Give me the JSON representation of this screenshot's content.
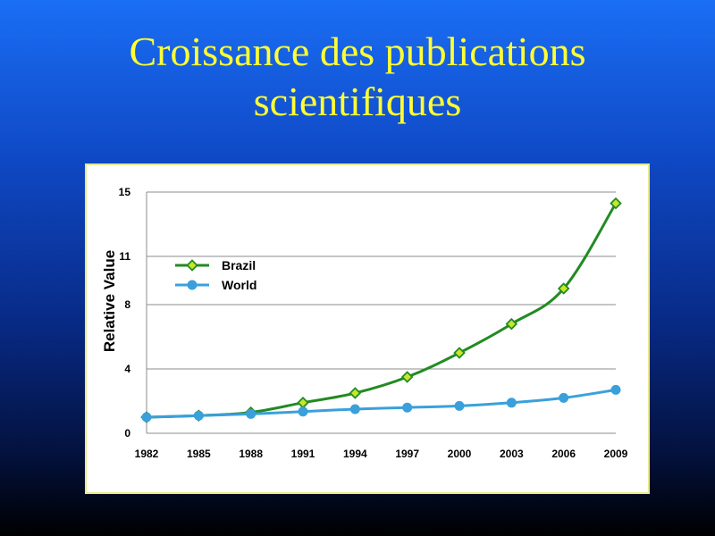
{
  "slide": {
    "title_line1": "Croissance des publications",
    "title_line2": "scientifiques"
  },
  "chart_data": {
    "type": "line",
    "title": "Croissance des publications scientifiques",
    "xlabel": "",
    "ylabel": "Relative Value",
    "x": [
      "1982",
      "1985",
      "1988",
      "1991",
      "1994",
      "1997",
      "2000",
      "2003",
      "2006",
      "2009"
    ],
    "yticks": [
      0,
      4,
      8,
      11,
      15
    ],
    "ylim": [
      0,
      15
    ],
    "grid": true,
    "legend_position": "upper-left",
    "series": [
      {
        "name": "Brazil",
        "values": [
          1.0,
          1.1,
          1.3,
          1.9,
          2.5,
          3.5,
          5.0,
          6.8,
          9.0,
          14.3
        ],
        "color": "#228b22",
        "marker": "diamond",
        "marker_fill": "#c8e62c"
      },
      {
        "name": "World",
        "values": [
          1.0,
          1.1,
          1.2,
          1.35,
          1.5,
          1.6,
          1.7,
          1.9,
          2.2,
          2.7
        ],
        "color": "#3aa0db",
        "marker": "circle",
        "marker_fill": "#3aa0db"
      }
    ]
  }
}
